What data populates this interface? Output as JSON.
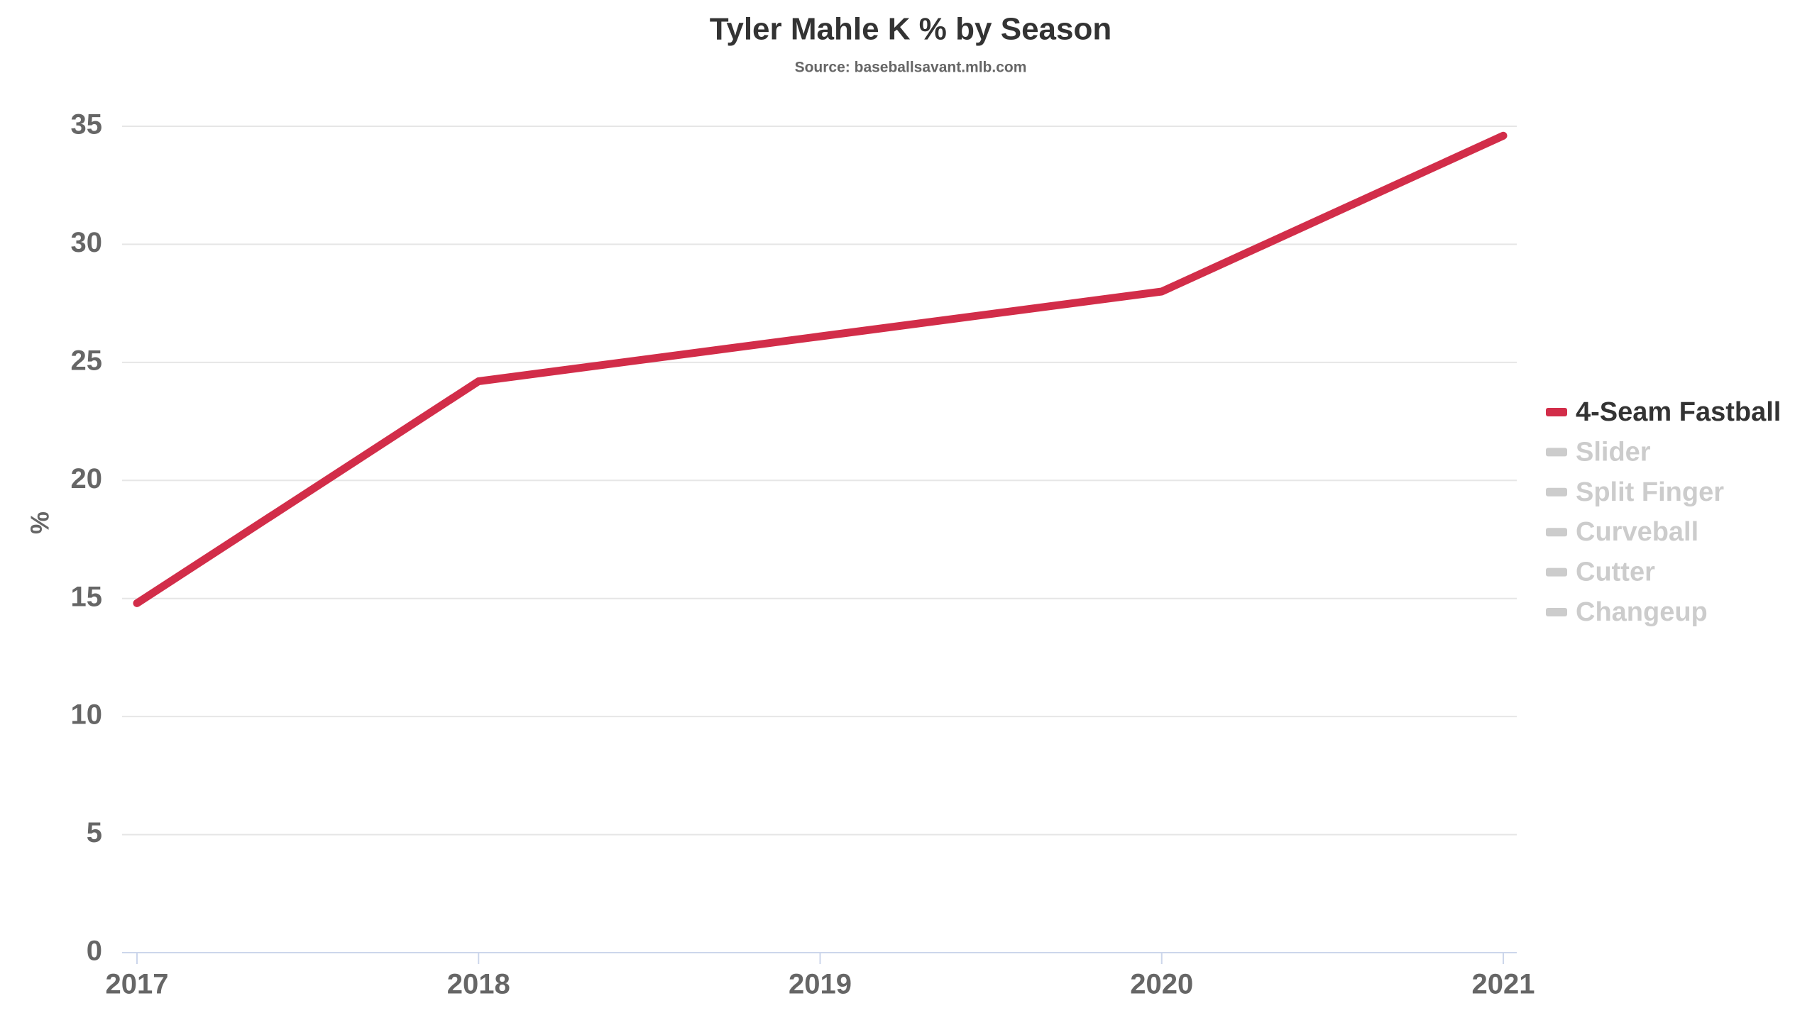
{
  "chart_data": {
    "type": "line",
    "title": "Tyler Mahle K % by Season",
    "subtitle": "Source: baseballsavant.mlb.com",
    "y_label": "%",
    "categories": [
      "2017",
      "2018",
      "2019",
      "2020",
      "2021"
    ],
    "series": [
      {
        "name": "4-Seam Fastball",
        "color": "#d22d49",
        "visible": true,
        "values": [
          14.8,
          24.2,
          26.1,
          28.0,
          34.6
        ]
      },
      {
        "name": "Slider",
        "color": "#cccccc",
        "visible": false,
        "values": [
          null,
          null,
          null,
          null,
          null
        ]
      },
      {
        "name": "Split Finger",
        "color": "#cccccc",
        "visible": false,
        "values": [
          null,
          null,
          null,
          null,
          null
        ]
      },
      {
        "name": "Curveball",
        "color": "#cccccc",
        "visible": false,
        "values": [
          null,
          null,
          null,
          null,
          null
        ]
      },
      {
        "name": "Cutter",
        "color": "#cccccc",
        "visible": false,
        "values": [
          null,
          null,
          null,
          null,
          null
        ]
      },
      {
        "name": "Changeup",
        "color": "#cccccc",
        "visible": false,
        "values": [
          null,
          null,
          null,
          null,
          null
        ]
      }
    ],
    "ylim": [
      0,
      35
    ],
    "yticks": [
      0,
      5,
      10,
      15,
      20,
      25,
      30,
      35
    ],
    "grid": true,
    "legend": "right"
  }
}
